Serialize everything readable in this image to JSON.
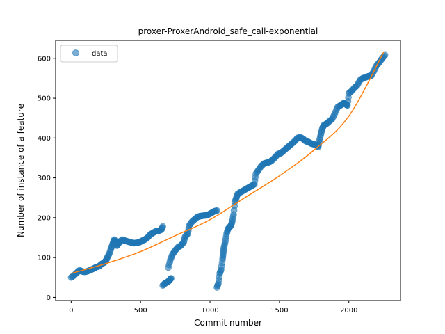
{
  "chart_data": {
    "type": "scatter",
    "title": "proxer-ProxerAndroid_safe_call-exponential",
    "xlabel": "Commit number",
    "ylabel": "Number of instance of a feature",
    "xlim": [
      -112,
      2372
    ],
    "ylim": [
      -8,
      645
    ],
    "x_ticks": [
      0,
      500,
      1000,
      1500,
      2000
    ],
    "y_ticks": [
      0,
      100,
      200,
      300,
      400,
      500,
      600
    ],
    "x_tick_labels": [
      "0",
      "500",
      "1000",
      "1500",
      "2000"
    ],
    "y_tick_labels": [
      "0",
      "100",
      "200",
      "300",
      "400",
      "500",
      "600"
    ],
    "legend": {
      "position": "top-left",
      "entries": [
        "data"
      ]
    },
    "grid": false,
    "colors": {
      "data": "#1f77b4",
      "fit": "#ff7f0e"
    },
    "series": [
      {
        "name": "data",
        "kind": "scatter",
        "segments": [
          [
            [
              0,
              50
            ],
            [
              20,
              55
            ],
            [
              40,
              62
            ],
            [
              60,
              68
            ],
            [
              80,
              65
            ],
            [
              100,
              64
            ],
            [
              120,
              66
            ],
            [
              140,
              69
            ],
            [
              160,
              72
            ],
            [
              180,
              76
            ],
            [
              200,
              78
            ],
            [
              220,
              84
            ],
            [
              240,
              88
            ],
            [
              250,
              92
            ],
            [
              260,
              100
            ],
            [
              275,
              110
            ],
            [
              290,
              125
            ],
            [
              300,
              135
            ],
            [
              310,
              145
            ],
            [
              320,
              140
            ],
            [
              330,
              130
            ],
            [
              340,
              135
            ],
            [
              350,
              140
            ],
            [
              370,
              145
            ],
            [
              390,
              142
            ],
            [
              410,
              140
            ],
            [
              430,
              138
            ],
            [
              450,
              136
            ],
            [
              470,
              137
            ],
            [
              490,
              138
            ],
            [
              510,
              142
            ],
            [
              530,
              145
            ],
            [
              550,
              150
            ],
            [
              570,
              158
            ],
            [
              590,
              162
            ],
            [
              610,
              166
            ],
            [
              630,
              167
            ],
            [
              650,
              170
            ],
            [
              660,
              178
            ]
          ],
          [
            [
              660,
              30
            ],
            [
              675,
              35
            ],
            [
              690,
              38
            ],
            [
              700,
              40
            ],
            [
              710,
              44
            ],
            [
              720,
              48
            ]
          ],
          [
            [
              700,
              75
            ],
            [
              715,
              95
            ],
            [
              730,
              108
            ],
            [
              750,
              118
            ],
            [
              770,
              126
            ],
            [
              790,
              130
            ],
            [
              810,
              138
            ],
            [
              820,
              152
            ],
            [
              840,
              160
            ],
            [
              850,
              180
            ],
            [
              870,
              190
            ],
            [
              890,
              196
            ],
            [
              910,
              202
            ],
            [
              930,
              204
            ],
            [
              950,
              205
            ],
            [
              970,
              206
            ],
            [
              990,
              208
            ],
            [
              1010,
              212
            ],
            [
              1030,
              216
            ],
            [
              1050,
              218
            ]
          ],
          [
            [
              1050,
              25
            ],
            [
              1060,
              35
            ],
            [
              1070,
              60
            ],
            [
              1080,
              70
            ],
            [
              1090,
              95
            ],
            [
              1095,
              110
            ],
            [
              1100,
              125
            ],
            [
              1110,
              140
            ],
            [
              1120,
              160
            ],
            [
              1130,
              172
            ],
            [
              1140,
              176
            ],
            [
              1150,
              180
            ],
            [
              1160,
              190
            ],
            [
              1170,
              208
            ],
            [
              1180,
              240
            ],
            [
              1190,
              250
            ],
            [
              1200,
              260
            ],
            [
              1220,
              264
            ],
            [
              1240,
              268
            ],
            [
              1260,
              272
            ],
            [
              1280,
              276
            ],
            [
              1300,
              280
            ],
            [
              1320,
              284
            ],
            [
              1330,
              310
            ],
            [
              1350,
              320
            ],
            [
              1370,
              330
            ],
            [
              1390,
              336
            ],
            [
              1410,
              338
            ],
            [
              1430,
              340
            ],
            [
              1450,
              345
            ],
            [
              1470,
              352
            ],
            [
              1490,
              360
            ],
            [
              1510,
              362
            ],
            [
              1530,
              368
            ],
            [
              1550,
              374
            ],
            [
              1570,
              380
            ],
            [
              1590,
              386
            ],
            [
              1610,
              392
            ],
            [
              1630,
              400
            ],
            [
              1650,
              402
            ],
            [
              1670,
              398
            ],
            [
              1690,
              392
            ],
            [
              1710,
              390
            ],
            [
              1730,
              386
            ],
            [
              1750,
              384
            ],
            [
              1770,
              382
            ],
            [
              1780,
              378
            ],
            [
              1790,
              396
            ],
            [
              1800,
              412
            ],
            [
              1810,
              425
            ],
            [
              1820,
              432
            ],
            [
              1840,
              436
            ],
            [
              1860,
              442
            ],
            [
              1880,
              448
            ],
            [
              1900,
              462
            ],
            [
              1920,
              478
            ],
            [
              1940,
              482
            ],
            [
              1960,
              487
            ],
            [
              1970,
              487
            ],
            [
              1980,
              484
            ],
            [
              1990,
              482
            ],
            [
              2000,
              512
            ],
            [
              2020,
              518
            ],
            [
              2040,
              526
            ],
            [
              2060,
              532
            ],
            [
              2080,
              545
            ],
            [
              2100,
              550
            ],
            [
              2120,
              552
            ],
            [
              2140,
              555
            ],
            [
              2160,
              556
            ],
            [
              2180,
              568
            ],
            [
              2200,
              582
            ],
            [
              2220,
              590
            ],
            [
              2240,
              600
            ],
            [
              2260,
              608
            ]
          ]
        ]
      },
      {
        "kind": "line",
        "x": [
          0,
          250,
          500,
          750,
          1000,
          1250,
          1500,
          1750,
          2000,
          2250
        ],
        "y": [
          60,
          85,
          115,
          155,
          195,
          250,
          305,
          370,
          455,
          615
        ]
      }
    ]
  }
}
